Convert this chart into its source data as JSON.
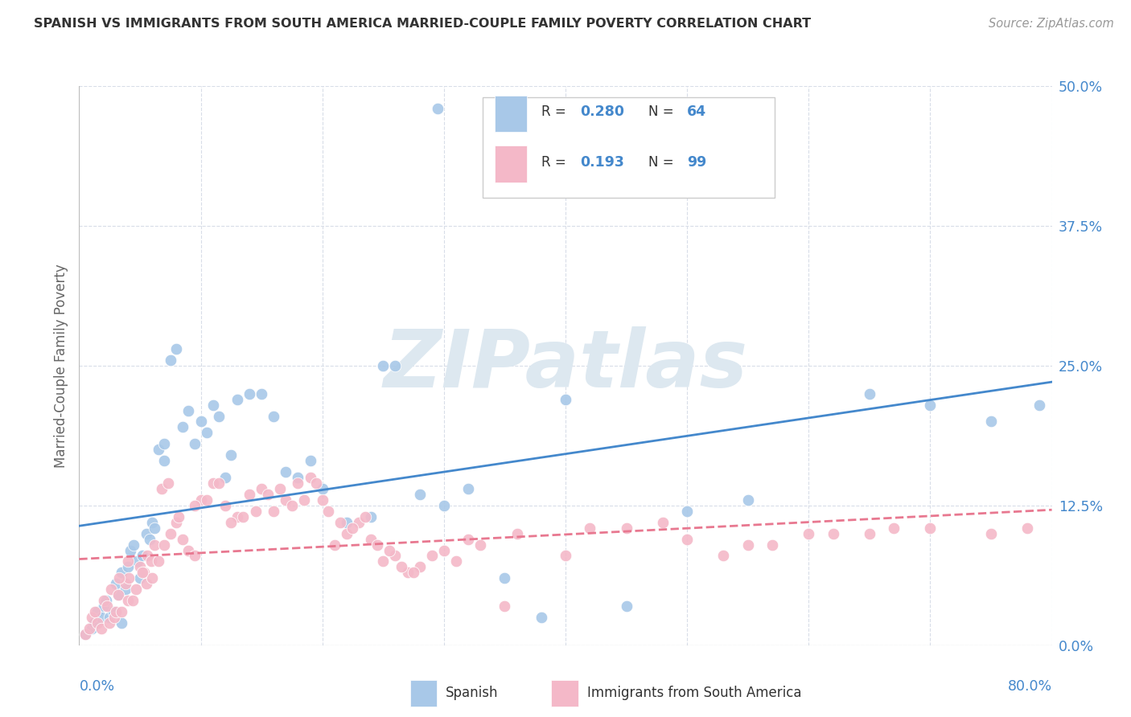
{
  "title": "SPANISH VS IMMIGRANTS FROM SOUTH AMERICA MARRIED-COUPLE FAMILY POVERTY CORRELATION CHART",
  "source": "Source: ZipAtlas.com",
  "ylabel": "Married-Couple Family Poverty",
  "ytick_values": [
    0.0,
    12.5,
    25.0,
    37.5,
    50.0
  ],
  "xlim": [
    0.0,
    80.0
  ],
  "ylim": [
    0.0,
    50.0
  ],
  "color_blue": "#a8c8e8",
  "color_pink": "#f4b8c8",
  "color_blue_line": "#4488cc",
  "color_pink_line": "#e87890",
  "color_axis": "#4488cc",
  "color_grid": "#d8dde8",
  "color_watermark": "#dde8f0",
  "background": "#ffffff",
  "spanish_x": [
    0.5,
    1.0,
    1.2,
    1.5,
    1.8,
    2.0,
    2.2,
    2.5,
    2.8,
    3.0,
    3.2,
    3.5,
    3.5,
    3.8,
    4.0,
    4.2,
    4.5,
    4.8,
    5.0,
    5.2,
    5.5,
    5.8,
    6.0,
    6.2,
    6.5,
    7.0,
    7.0,
    7.5,
    8.0,
    8.5,
    9.0,
    9.5,
    10.0,
    10.5,
    11.0,
    11.5,
    12.0,
    12.5,
    13.0,
    14.0,
    15.0,
    16.0,
    17.0,
    18.0,
    19.0,
    20.0,
    22.0,
    24.0,
    25.0,
    26.0,
    28.0,
    30.0,
    32.0,
    35.0,
    38.0,
    40.0,
    45.0,
    50.0,
    55.0,
    65.0,
    70.0,
    75.0,
    79.0,
    29.5
  ],
  "spanish_y": [
    1.0,
    1.5,
    2.0,
    3.0,
    2.5,
    3.5,
    4.0,
    2.5,
    3.0,
    5.5,
    4.5,
    2.0,
    6.5,
    5.0,
    7.0,
    8.5,
    9.0,
    7.5,
    6.0,
    8.0,
    10.0,
    9.5,
    11.0,
    10.5,
    17.5,
    16.5,
    18.0,
    25.5,
    26.5,
    19.5,
    21.0,
    18.0,
    20.0,
    19.0,
    21.5,
    20.5,
    15.0,
    17.0,
    22.0,
    22.5,
    22.5,
    20.5,
    15.5,
    15.0,
    16.5,
    14.0,
    11.0,
    11.5,
    25.0,
    25.0,
    13.5,
    12.5,
    14.0,
    6.0,
    2.5,
    22.0,
    3.5,
    12.0,
    13.0,
    22.5,
    21.5,
    20.0,
    21.5,
    48.0
  ],
  "sa_x": [
    0.5,
    0.8,
    1.0,
    1.3,
    1.5,
    1.8,
    2.0,
    2.3,
    2.5,
    2.6,
    2.9,
    3.0,
    3.2,
    3.5,
    3.8,
    4.0,
    4.1,
    4.4,
    4.7,
    5.0,
    5.3,
    5.5,
    5.6,
    5.9,
    6.0,
    6.2,
    6.5,
    7.0,
    7.5,
    8.0,
    8.5,
    9.0,
    9.5,
    10.0,
    11.0,
    12.0,
    13.0,
    14.0,
    15.0,
    16.0,
    17.0,
    18.0,
    19.0,
    20.0,
    21.0,
    22.0,
    23.0,
    24.0,
    25.0,
    26.0,
    27.0,
    28.0,
    30.0,
    32.0,
    35.0,
    40.0,
    45.0,
    55.0,
    60.0,
    65.0,
    70.0,
    75.0,
    78.0,
    3.3,
    4.0,
    5.2,
    6.8,
    7.3,
    8.2,
    9.5,
    10.5,
    11.5,
    12.5,
    13.5,
    14.5,
    15.5,
    16.5,
    17.5,
    18.5,
    19.5,
    20.5,
    21.5,
    22.5,
    23.5,
    24.5,
    25.5,
    26.5,
    27.5,
    29.0,
    31.0,
    33.0,
    36.0,
    42.0,
    48.0,
    50.0,
    53.0,
    57.0,
    62.0,
    67.0
  ],
  "sa_y": [
    1.0,
    1.5,
    2.5,
    3.0,
    2.0,
    1.5,
    4.0,
    3.5,
    2.0,
    5.0,
    2.5,
    3.0,
    4.5,
    3.0,
    5.5,
    4.0,
    6.0,
    4.0,
    5.0,
    7.0,
    6.5,
    5.5,
    8.0,
    7.5,
    6.0,
    9.0,
    7.5,
    9.0,
    10.0,
    11.0,
    9.5,
    8.5,
    8.0,
    13.0,
    14.5,
    12.5,
    11.5,
    13.5,
    14.0,
    12.0,
    13.0,
    14.5,
    15.0,
    13.0,
    9.0,
    10.0,
    11.0,
    9.5,
    7.5,
    8.0,
    6.5,
    7.0,
    8.5,
    9.5,
    3.5,
    8.0,
    10.5,
    9.0,
    10.0,
    10.0,
    10.5,
    10.0,
    10.5,
    6.0,
    7.5,
    6.5,
    14.0,
    14.5,
    11.5,
    12.5,
    13.0,
    14.5,
    11.0,
    11.5,
    12.0,
    13.5,
    14.0,
    12.5,
    13.0,
    14.5,
    12.0,
    11.0,
    10.5,
    11.5,
    9.0,
    8.5,
    7.0,
    6.5,
    8.0,
    7.5,
    9.0,
    10.0,
    10.5,
    11.0,
    9.5,
    8.0,
    9.0,
    10.0,
    10.5
  ]
}
